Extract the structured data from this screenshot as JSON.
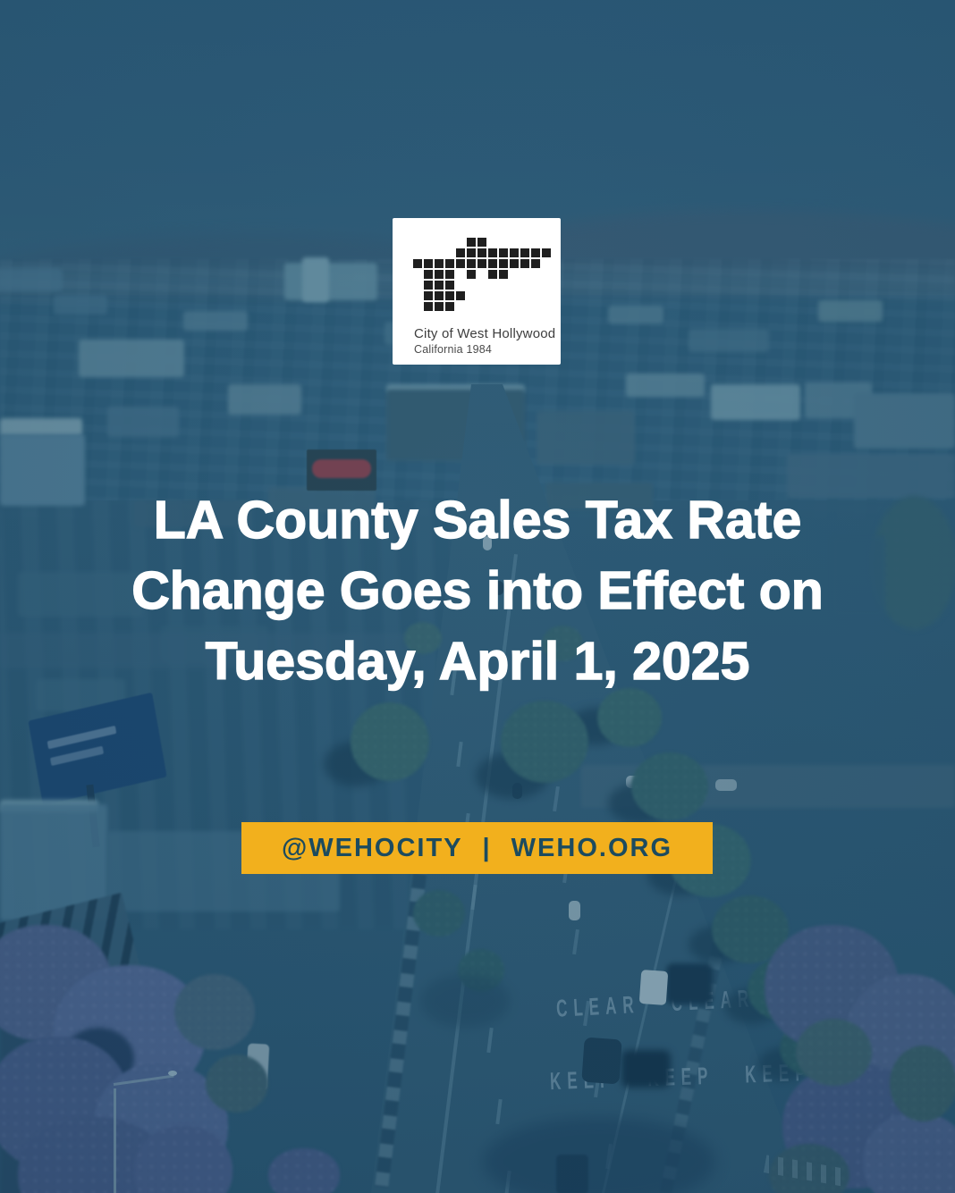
{
  "logo": {
    "city_name": "City of West Hollywood",
    "subtitle": "California 1984",
    "square_color": "#1f1f1f",
    "grid": [
      ".....##......",
      "....#########",
      "############.",
      ".###.#.##....",
      ".###.........",
      ".####........",
      ".###........."
    ]
  },
  "title": {
    "line1": "LA County Sales Tax Rate",
    "line2": "Change Goes into Effect on",
    "line3": "Tuesday, April 1, 2025",
    "color": "#ffffff"
  },
  "banner": {
    "handle": "@WEHOCITY",
    "separator": "|",
    "site": "WEHO.ORG",
    "background_color": "#F2B01D",
    "text_color": "#1C4B5F"
  },
  "background": {
    "road_marking_row1": "CLEAR   CLEAR",
    "road_marking_row2": "KEEP   KEEP   KEEP",
    "tint_color": "#174A67"
  }
}
